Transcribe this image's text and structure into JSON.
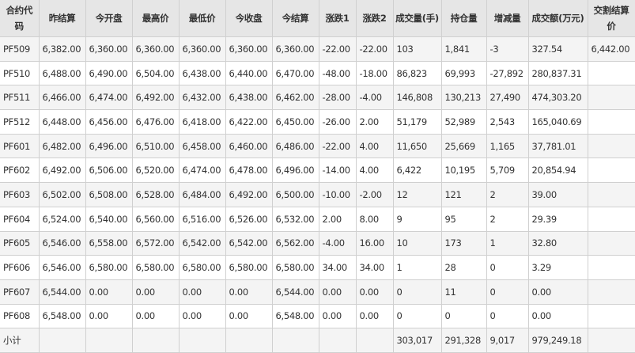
{
  "headers": [
    "合约代码",
    "昨结算",
    "今开盘",
    "最高价",
    "最低价",
    "今收盘",
    "今结算",
    "涨跌1",
    "涨跌2",
    "成交量(手)",
    "持仓量",
    "增减量",
    "成交额(万元)",
    "交割结算价"
  ],
  "rows": [
    [
      "PF509",
      "6,382.00",
      "6,360.00",
      "6,360.00",
      "6,360.00",
      "6,360.00",
      "6,360.00",
      "-22.00",
      "-22.00",
      "103",
      "1,841",
      "-3",
      "327.54",
      "6,442.00"
    ],
    [
      "PF510",
      "6,488.00",
      "6,490.00",
      "6,504.00",
      "6,438.00",
      "6,440.00",
      "6,470.00",
      "-48.00",
      "-18.00",
      "86,823",
      "69,993",
      "-27,892",
      "280,837.31",
      ""
    ],
    [
      "PF511",
      "6,466.00",
      "6,474.00",
      "6,492.00",
      "6,432.00",
      "6,438.00",
      "6,462.00",
      "-28.00",
      "-4.00",
      "146,808",
      "130,213",
      "27,490",
      "474,303.20",
      ""
    ],
    [
      "PF512",
      "6,448.00",
      "6,456.00",
      "6,476.00",
      "6,418.00",
      "6,422.00",
      "6,450.00",
      "-26.00",
      "2.00",
      "51,179",
      "52,989",
      "2,543",
      "165,040.69",
      ""
    ],
    [
      "PF601",
      "6,482.00",
      "6,496.00",
      "6,510.00",
      "6,458.00",
      "6,460.00",
      "6,486.00",
      "-22.00",
      "4.00",
      "11,650",
      "25,669",
      "1,165",
      "37,781.01",
      ""
    ],
    [
      "PF602",
      "6,492.00",
      "6,506.00",
      "6,520.00",
      "6,474.00",
      "6,478.00",
      "6,496.00",
      "-14.00",
      "4.00",
      "6,422",
      "10,195",
      "5,709",
      "20,854.94",
      ""
    ],
    [
      "PF603",
      "6,502.00",
      "6,508.00",
      "6,528.00",
      "6,484.00",
      "6,492.00",
      "6,500.00",
      "-10.00",
      "-2.00",
      "12",
      "121",
      "2",
      "39.00",
      ""
    ],
    [
      "PF604",
      "6,524.00",
      "6,540.00",
      "6,560.00",
      "6,516.00",
      "6,526.00",
      "6,532.00",
      "2.00",
      "8.00",
      "9",
      "95",
      "2",
      "29.39",
      ""
    ],
    [
      "PF605",
      "6,546.00",
      "6,558.00",
      "6,572.00",
      "6,542.00",
      "6,542.00",
      "6,562.00",
      "-4.00",
      "16.00",
      "10",
      "173",
      "1",
      "32.80",
      ""
    ],
    [
      "PF606",
      "6,546.00",
      "6,580.00",
      "6,580.00",
      "6,580.00",
      "6,580.00",
      "6,580.00",
      "34.00",
      "34.00",
      "1",
      "28",
      "0",
      "3.29",
      ""
    ],
    [
      "PF607",
      "6,544.00",
      "0.00",
      "0.00",
      "0.00",
      "0.00",
      "6,544.00",
      "0.00",
      "0.00",
      "0",
      "11",
      "0",
      "0.00",
      ""
    ],
    [
      "PF608",
      "6,548.00",
      "0.00",
      "0.00",
      "0.00",
      "0.00",
      "6,548.00",
      "0.00",
      "0.00",
      "0",
      "0",
      "0",
      "0.00",
      ""
    ]
  ],
  "subtotal": [
    "小计",
    "",
    "",
    "",
    "",
    "",
    "",
    "",
    "",
    "303,017",
    "291,328",
    "9,017",
    "979,249.18",
    ""
  ]
}
